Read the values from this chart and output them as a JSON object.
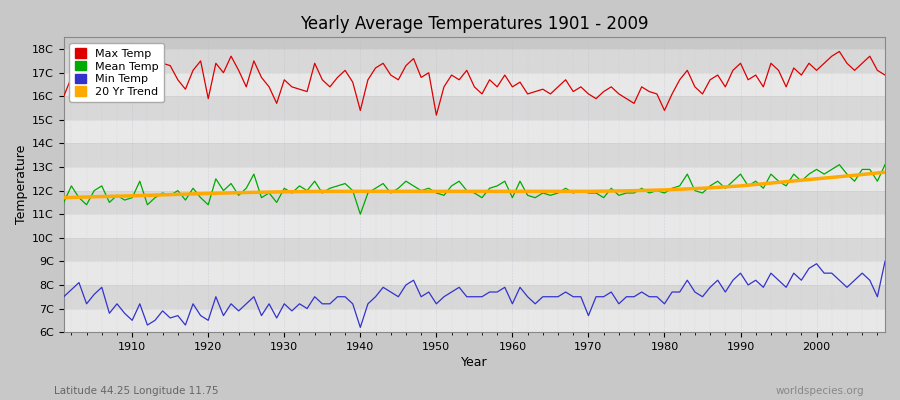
{
  "title": "Yearly Average Temperatures 1901 - 2009",
  "xlabel": "Year",
  "ylabel": "Temperature",
  "subtitle_left": "Latitude 44.25 Longitude 11.75",
  "subtitle_right": "worldspecies.org",
  "legend_labels": [
    "Max Temp",
    "Mean Temp",
    "Min Temp",
    "20 Yr Trend"
  ],
  "line_colors": [
    "#dd0000",
    "#00aa00",
    "#3333cc",
    "#ffaa00"
  ],
  "fig_bg": "#c8c8c8",
  "plot_bg_light": "#e8e8e8",
  "plot_bg_dark": "#d8d8d8",
  "ylim": [
    6,
    18.5
  ],
  "ytick_values": [
    6,
    7,
    8,
    9,
    10,
    11,
    12,
    13,
    14,
    15,
    16,
    17,
    18
  ],
  "ytick_labels": [
    "6C",
    "7C",
    "8C",
    "9C",
    "10C",
    "11C",
    "12C",
    "13C",
    "14C",
    "15C",
    "16C",
    "17C",
    "18C"
  ],
  "xlim": [
    1901,
    2009
  ],
  "xtick_values": [
    1910,
    1920,
    1930,
    1940,
    1950,
    1960,
    1970,
    1980,
    1990,
    2000
  ],
  "years": [
    1901,
    1902,
    1903,
    1904,
    1905,
    1906,
    1907,
    1908,
    1909,
    1910,
    1911,
    1912,
    1913,
    1914,
    1915,
    1916,
    1917,
    1918,
    1919,
    1920,
    1921,
    1922,
    1923,
    1924,
    1925,
    1926,
    1927,
    1928,
    1929,
    1930,
    1931,
    1932,
    1933,
    1934,
    1935,
    1936,
    1937,
    1938,
    1939,
    1940,
    1941,
    1942,
    1943,
    1944,
    1945,
    1946,
    1947,
    1948,
    1949,
    1950,
    1951,
    1952,
    1953,
    1954,
    1955,
    1956,
    1957,
    1958,
    1959,
    1960,
    1961,
    1962,
    1963,
    1964,
    1965,
    1966,
    1967,
    1968,
    1969,
    1970,
    1971,
    1972,
    1973,
    1974,
    1975,
    1976,
    1977,
    1978,
    1979,
    1980,
    1981,
    1982,
    1983,
    1984,
    1985,
    1986,
    1987,
    1988,
    1989,
    1990,
    1991,
    1992,
    1993,
    1994,
    1995,
    1996,
    1997,
    1998,
    1999,
    2000,
    2001,
    2002,
    2003,
    2004,
    2005,
    2006,
    2007,
    2008,
    2009
  ],
  "max_temp": [
    16.0,
    16.8,
    17.1,
    17.3,
    17.5,
    17.3,
    16.6,
    17.1,
    16.9,
    16.3,
    17.7,
    17.2,
    16.9,
    17.4,
    17.3,
    16.7,
    16.3,
    17.1,
    17.5,
    15.9,
    17.4,
    17.0,
    17.7,
    17.1,
    16.4,
    17.5,
    16.8,
    16.4,
    15.7,
    16.7,
    16.4,
    16.3,
    16.2,
    17.4,
    16.7,
    16.4,
    16.8,
    17.1,
    16.6,
    15.4,
    16.7,
    17.2,
    17.4,
    16.9,
    16.7,
    17.3,
    17.6,
    16.8,
    17.0,
    15.2,
    16.4,
    16.9,
    16.7,
    17.1,
    16.4,
    16.1,
    16.7,
    16.4,
    16.9,
    16.4,
    16.6,
    16.1,
    16.2,
    16.3,
    16.1,
    16.4,
    16.7,
    16.2,
    16.4,
    16.1,
    15.9,
    16.2,
    16.4,
    16.1,
    15.9,
    15.7,
    16.4,
    16.2,
    16.1,
    15.4,
    16.1,
    16.7,
    17.1,
    16.4,
    16.1,
    16.7,
    16.9,
    16.4,
    17.1,
    17.4,
    16.7,
    16.9,
    16.4,
    17.4,
    17.1,
    16.4,
    17.2,
    16.9,
    17.4,
    17.1,
    17.4,
    17.7,
    17.9,
    17.4,
    17.1,
    17.4,
    17.7,
    17.1,
    16.9
  ],
  "mean_temp": [
    11.5,
    12.2,
    11.7,
    11.4,
    12.0,
    12.2,
    11.5,
    11.8,
    11.6,
    11.7,
    12.4,
    11.4,
    11.7,
    11.9,
    11.8,
    12.0,
    11.6,
    12.1,
    11.7,
    11.4,
    12.5,
    12.0,
    12.3,
    11.8,
    12.1,
    12.7,
    11.7,
    11.9,
    11.5,
    12.1,
    11.9,
    12.2,
    12.0,
    12.4,
    11.9,
    12.1,
    12.2,
    12.3,
    12.0,
    11.0,
    11.9,
    12.1,
    12.3,
    11.9,
    12.1,
    12.4,
    12.2,
    12.0,
    12.1,
    11.9,
    11.8,
    12.2,
    12.4,
    12.0,
    11.9,
    11.7,
    12.1,
    12.2,
    12.4,
    11.7,
    12.4,
    11.8,
    11.7,
    11.9,
    11.8,
    11.9,
    12.1,
    11.9,
    12.0,
    11.9,
    11.9,
    11.7,
    12.1,
    11.8,
    11.9,
    11.9,
    12.1,
    11.9,
    12.0,
    11.9,
    12.1,
    12.2,
    12.7,
    12.0,
    11.9,
    12.2,
    12.4,
    12.1,
    12.4,
    12.7,
    12.2,
    12.4,
    12.1,
    12.7,
    12.4,
    12.2,
    12.7,
    12.4,
    12.7,
    12.9,
    12.7,
    12.9,
    13.1,
    12.7,
    12.4,
    12.9,
    12.9,
    12.4,
    13.1
  ],
  "min_temp": [
    7.5,
    7.8,
    8.1,
    7.2,
    7.6,
    7.9,
    6.8,
    7.2,
    6.8,
    6.5,
    7.2,
    6.3,
    6.5,
    6.9,
    6.6,
    6.7,
    6.3,
    7.2,
    6.7,
    6.5,
    7.5,
    6.7,
    7.2,
    6.9,
    7.2,
    7.5,
    6.7,
    7.2,
    6.6,
    7.2,
    6.9,
    7.2,
    7.0,
    7.5,
    7.2,
    7.2,
    7.5,
    7.5,
    7.2,
    6.2,
    7.2,
    7.5,
    7.9,
    7.7,
    7.5,
    8.0,
    8.2,
    7.5,
    7.7,
    7.2,
    7.5,
    7.7,
    7.9,
    7.5,
    7.5,
    7.5,
    7.7,
    7.7,
    7.9,
    7.2,
    7.9,
    7.5,
    7.2,
    7.5,
    7.5,
    7.5,
    7.7,
    7.5,
    7.5,
    6.7,
    7.5,
    7.5,
    7.7,
    7.2,
    7.5,
    7.5,
    7.7,
    7.5,
    7.5,
    7.2,
    7.7,
    7.7,
    8.2,
    7.7,
    7.5,
    7.9,
    8.2,
    7.7,
    8.2,
    8.5,
    8.0,
    8.2,
    7.9,
    8.5,
    8.2,
    7.9,
    8.5,
    8.2,
    8.7,
    8.9,
    8.5,
    8.5,
    8.2,
    7.9,
    8.2,
    8.5,
    8.2,
    7.5,
    9.0
  ],
  "trend_years": [
    1901,
    1905,
    1910,
    1915,
    1920,
    1925,
    1930,
    1935,
    1940,
    1945,
    1950,
    1955,
    1960,
    1965,
    1970,
    1975,
    1980,
    1985,
    1990,
    1995,
    2000,
    2005,
    2009
  ],
  "trend_values": [
    11.7,
    11.74,
    11.78,
    11.83,
    11.88,
    11.92,
    11.95,
    11.97,
    11.97,
    11.97,
    11.97,
    11.97,
    11.97,
    11.97,
    11.97,
    11.99,
    12.03,
    12.1,
    12.2,
    12.35,
    12.5,
    12.65,
    12.78
  ]
}
